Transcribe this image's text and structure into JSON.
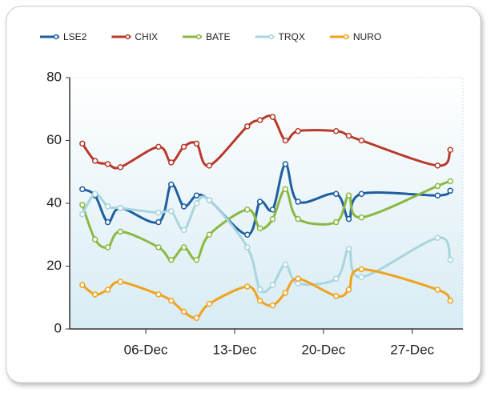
{
  "chart_data": {
    "type": "line",
    "x": [
      "01-Dec",
      "02-Dec",
      "03-Dec",
      "04-Dec",
      "07-Dec",
      "08-Dec",
      "09-Dec",
      "10-Dec",
      "11-Dec",
      "14-Dec",
      "15-Dec",
      "16-Dec",
      "17-Dec",
      "18-Dec",
      "21-Dec",
      "22-Dec",
      "23-Dec",
      "29-Dec",
      "30-Dec"
    ],
    "xlim": [
      "30-Nov",
      "31-Dec"
    ],
    "xticks": [
      "06-Dec",
      "13-Dec",
      "20-Dec",
      "27-Dec"
    ],
    "ylim": [
      0,
      80
    ],
    "yticks": [
      0,
      20,
      40,
      60,
      80
    ],
    "grid": false,
    "legend": "top",
    "series": [
      {
        "name": "LSE2",
        "color": "#1f5fa0",
        "values": [
          44.5,
          42.5,
          34,
          38.5,
          34,
          46,
          39,
          42.5,
          41,
          30,
          40.5,
          38,
          52.5,
          40.5,
          43,
          35,
          43,
          42.5,
          44
        ]
      },
      {
        "name": "CHIX",
        "color": "#b83a2a",
        "values": [
          59,
          53.5,
          52.5,
          51.5,
          58,
          53,
          58,
          59,
          52,
          64.5,
          66.5,
          67.5,
          60,
          63,
          63,
          61.5,
          60,
          52,
          57
        ]
      },
      {
        "name": "BATE",
        "color": "#8ab843",
        "values": [
          39.5,
          28.5,
          26,
          31,
          26,
          22,
          26,
          22,
          30,
          38,
          32,
          35,
          44.5,
          35,
          34,
          42.5,
          35.5,
          45.5,
          47
        ]
      },
      {
        "name": "TRQX",
        "color": "#a8d5de",
        "values": [
          36.5,
          43,
          39,
          38.5,
          37,
          37.5,
          31.5,
          40,
          41,
          26,
          12.5,
          14,
          20.5,
          14.5,
          16,
          25.5,
          16.5,
          29,
          22
        ]
      },
      {
        "name": "NURO",
        "color": "#f0a21f",
        "values": [
          14,
          11,
          12.5,
          15,
          11,
          9,
          5.5,
          3.5,
          8,
          13.5,
          9,
          7.5,
          11.5,
          16,
          10.5,
          12.5,
          19,
          12.5,
          9
        ]
      }
    ]
  }
}
